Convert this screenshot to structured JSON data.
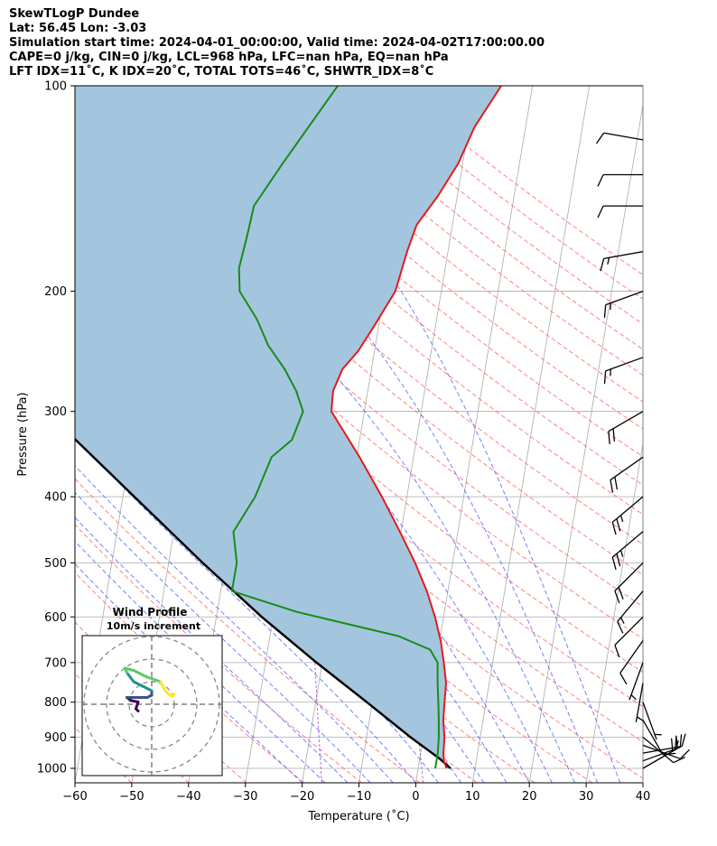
{
  "header": {
    "title": "SkewTLogP Dundee",
    "location": "Lat: 56.45   Lon: -3.03",
    "times": "Simulation start time: 2024-04-01_00:00:00, Valid time: 2024-04-02T17:00:00.00",
    "params": "CAPE=0 j/kg, CIN=0 j/kg, LCL=968 hPa, LFC=nan hPa, EQ=nan hPa",
    "indices": "LFT IDX=11˚C, K IDX=20˚C, TOTAL TOTS=46˚C, SHWTR_IDX=8˚C"
  },
  "chart_data": [
    {
      "type": "skewt",
      "xlabel": "Temperature (˚C)",
      "ylabel": "Pressure (hPa)",
      "xlim": [
        -60,
        40
      ],
      "ylim": [
        1050,
        100
      ],
      "x_ticks": [
        "−60",
        "−50",
        "−40",
        "−30",
        "−20",
        "−10",
        "0",
        "10",
        "20",
        "30",
        "40"
      ],
      "y_ticks": [
        "100",
        "200",
        "300",
        "400",
        "500",
        "600",
        "700",
        "800",
        "900",
        "1000"
      ],
      "y_tick_values": [
        100,
        200,
        300,
        400,
        500,
        600,
        700,
        800,
        900,
        1000
      ],
      "grid": true,
      "colors": {
        "temperature": "#e41a1c",
        "dewpoint": "#1a8a1a",
        "parcel": "#000000",
        "cape_fill": "#a3c6de",
        "dry_adiabats": "#ff6b6b",
        "moist_adiabats": "#5a6bff",
        "mixing_ratio": "#9b30d0",
        "isotherms": "#aaaaaa"
      },
      "series": [
        {
          "key": "temperature",
          "values": [
            [
              1000,
              5.0
            ],
            [
              975,
              4.3
            ],
            [
              950,
              4.0
            ],
            [
              900,
              3.7
            ],
            [
              850,
              3.0
            ],
            [
              800,
              2.7
            ],
            [
              750,
              2.4
            ],
            [
              700,
              1.4
            ],
            [
              650,
              0.2
            ],
            [
              600,
              -1.5
            ],
            [
              550,
              -3.7
            ],
            [
              500,
              -6.6
            ],
            [
              450,
              -10.2
            ],
            [
              400,
              -14.4
            ],
            [
              350,
              -19.5
            ],
            [
              300,
              -25.8
            ],
            [
              280,
              -26.1
            ],
            [
              260,
              -25.1
            ],
            [
              245,
              -22.9
            ],
            [
              225,
              -20.8
            ],
            [
              200,
              -18.1
            ],
            [
              175,
              -17.2
            ],
            [
              160,
              -16.3
            ],
            [
              145,
              -13.4
            ],
            [
              130,
              -10.8
            ],
            [
              115,
              -9.0
            ],
            [
              100,
              -5.5
            ]
          ]
        },
        {
          "key": "dewpoint",
          "values": [
            [
              1000,
              3.0
            ],
            [
              950,
              3.0
            ],
            [
              900,
              2.7
            ],
            [
              850,
              2.2
            ],
            [
              800,
              1.6
            ],
            [
              750,
              0.9
            ],
            [
              700,
              0.3
            ],
            [
              670,
              -1.4
            ],
            [
              640,
              -7.4
            ],
            [
              590,
              -26.0
            ],
            [
              550,
              -38.0
            ],
            [
              500,
              -38.0
            ],
            [
              450,
              -39.5
            ],
            [
              400,
              -36.7
            ],
            [
              350,
              -35.0
            ],
            [
              330,
              -31.9
            ],
            [
              300,
              -30.8
            ],
            [
              280,
              -32.6
            ],
            [
              260,
              -35.3
            ],
            [
              240,
              -38.9
            ],
            [
              220,
              -41.6
            ],
            [
              200,
              -45.5
            ],
            [
              185,
              -46.3
            ],
            [
              165,
              -45.8
            ],
            [
              150,
              -45.5
            ],
            [
              130,
              -41.7
            ],
            [
              100,
              -34.3
            ]
          ]
        },
        {
          "key": "parcel",
          "values": [
            [
              1000,
              5.7
            ],
            [
              968,
              3.5
            ],
            [
              900,
              -2.3
            ],
            [
              800,
              -11.0
            ],
            [
              700,
              -21.0
            ],
            [
              600,
              -32.0
            ],
            [
              500,
              -44.0
            ],
            [
              400,
              -58.0
            ],
            [
              300,
              -76.0
            ],
            [
              200,
              -96.0
            ],
            [
              100,
              -124.0
            ]
          ]
        }
      ],
      "wind_barbs": {
        "units": "kt",
        "levels": [
          {
            "p": 1000,
            "speed": 20,
            "dir": 60
          },
          {
            "p": 975,
            "speed": 20,
            "dir": 70
          },
          {
            "p": 950,
            "speed": 15,
            "dir": 80
          },
          {
            "p": 925,
            "speed": 10,
            "dir": 110
          },
          {
            "p": 900,
            "speed": 10,
            "dir": 130
          },
          {
            "p": 850,
            "speed": 10,
            "dir": 150
          },
          {
            "p": 800,
            "speed": 5,
            "dir": 160
          },
          {
            "p": 750,
            "speed": 5,
            "dir": 190
          },
          {
            "p": 700,
            "speed": 5,
            "dir": 200
          },
          {
            "p": 650,
            "speed": 10,
            "dir": 215
          },
          {
            "p": 600,
            "speed": 10,
            "dir": 225
          },
          {
            "p": 550,
            "speed": 15,
            "dir": 220
          },
          {
            "p": 500,
            "speed": 20,
            "dir": 225
          },
          {
            "p": 450,
            "speed": 25,
            "dir": 230
          },
          {
            "p": 400,
            "speed": 25,
            "dir": 230
          },
          {
            "p": 350,
            "speed": 20,
            "dir": 235
          },
          {
            "p": 300,
            "speed": 20,
            "dir": 240
          },
          {
            "p": 250,
            "speed": 15,
            "dir": 250
          },
          {
            "p": 200,
            "speed": 15,
            "dir": 250
          },
          {
            "p": 175,
            "speed": 15,
            "dir": 260
          },
          {
            "p": 150,
            "speed": 10,
            "dir": 270
          },
          {
            "p": 135,
            "speed": 10,
            "dir": 270
          },
          {
            "p": 120,
            "speed": 10,
            "dir": 280
          }
        ]
      }
    },
    {
      "type": "hodograph",
      "title": "Wind Profile",
      "subtitle": "10m/s increment",
      "rings": 3,
      "colormap": [
        "#440154",
        "#3b528b",
        "#21918c",
        "#5ec962",
        "#fde725"
      ],
      "values": [
        [
          -3,
          -1.5
        ],
        [
          -3.5,
          -1
        ],
        [
          -3,
          0.5
        ],
        [
          -4.5,
          0.8
        ],
        [
          -5.5,
          1.5
        ],
        [
          -3.5,
          1.5
        ],
        [
          -1,
          1.5
        ],
        [
          0,
          2
        ],
        [
          0,
          3
        ],
        [
          -2,
          4
        ],
        [
          -4,
          5
        ],
        [
          -5.5,
          7
        ],
        [
          -6,
          8
        ],
        [
          -4,
          7.5
        ],
        [
          -1,
          6
        ],
        [
          2,
          5
        ],
        [
          3,
          3
        ],
        [
          4,
          2
        ],
        [
          5,
          2.2
        ],
        [
          4.5,
          1.8
        ]
      ]
    }
  ]
}
